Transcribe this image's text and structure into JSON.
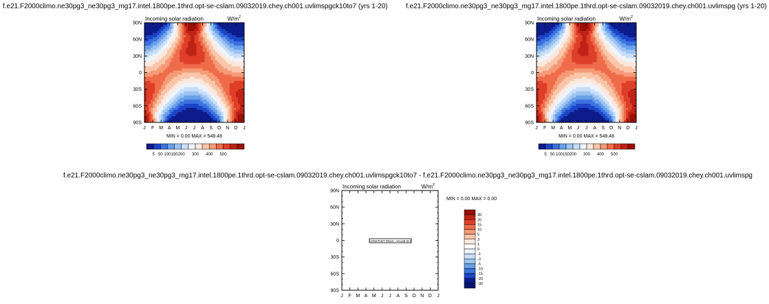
{
  "titles": {
    "top_left": "f.e21.F2000climo.ne30pg3_ne30pg3_mg17.intel.1800pe.1thrd.opt-se-cslam.09032019.chey.ch001.uvlimspgck10to7 (yrs 1-20)",
    "top_right": "f.e21.F2000climo.ne30pg3_ne30pg3_mg17.intel.1800pe.1thrd.opt-se-cslam.09032019.chey.ch001.uvlimspg (yrs 1-20)",
    "bottom": "f.e21.F2000climo.ne30pg3_ne30pg3_mg17.intel.1800pe.1thrd.opt-se-cslam.09032019.chey.ch001.uvlimspgck10to7 - f.e21.F2000climo.ne30pg3_ne30pg3_mg17.intel.1800pe.1thrd.opt-se-cslam.09032019.chey.ch001.uvlimspg"
  },
  "chart_data": [
    {
      "type": "heatmap",
      "title": "Incoming solar radiation",
      "units": "W/m",
      "units_sup": "2",
      "x_ticks": [
        "J",
        "F",
        "M",
        "A",
        "M",
        "J",
        "J",
        "A",
        "S",
        "O",
        "N",
        "D",
        "J"
      ],
      "y_ticks": [
        "90N",
        "60N",
        "30N",
        "0",
        "30S",
        "60S",
        "90S"
      ],
      "ylim": [
        -90,
        90
      ],
      "stats": "MIN =   0.00 MAX = 548.48",
      "colorbar_labels": [
        "5",
        "50",
        "100",
        "150",
        "200",
        "300",
        "400",
        "500"
      ],
      "colors": [
        "#0d1c8a",
        "#1c44c8",
        "#3c73df",
        "#6aa0ea",
        "#9cc4f2",
        "#c9dff8",
        "#eef4fc",
        "#fde8dc",
        "#f9c6aa",
        "#f59b77",
        "#ef6c4b",
        "#de3f28",
        "#bf2316",
        "#981007"
      ]
    },
    {
      "type": "heatmap",
      "title": "Incoming solar radiation",
      "units": "W/m",
      "units_sup": "2",
      "x_ticks": [
        "J",
        "F",
        "M",
        "A",
        "M",
        "J",
        "J",
        "A",
        "S",
        "O",
        "N",
        "D",
        "J"
      ],
      "y_ticks": [
        "90N",
        "60N",
        "30N",
        "0",
        "30S",
        "60S",
        "90S"
      ],
      "ylim": [
        -90,
        90
      ],
      "stats": "MIN =   0.00 MAX = 548.48",
      "colorbar_labels": [
        "5",
        "50",
        "100",
        "150",
        "200",
        "300",
        "400",
        "500"
      ],
      "colors": [
        "#0d1c8a",
        "#1c44c8",
        "#3c73df",
        "#6aa0ea",
        "#9cc4f2",
        "#c9dff8",
        "#eef4fc",
        "#fde8dc",
        "#f9c6aa",
        "#f59b77",
        "#ef6c4b",
        "#de3f28",
        "#bf2316",
        "#981007"
      ]
    },
    {
      "type": "heatmap",
      "title": "Incoming solar radiation",
      "units": "W/m",
      "units_sup": "2",
      "x_ticks": [
        "J",
        "F",
        "M",
        "A",
        "M",
        "J",
        "J",
        "A",
        "S",
        "O",
        "N",
        "D",
        "J"
      ],
      "y_ticks": [
        "90N",
        "60N",
        "30N",
        "0",
        "30S",
        "60S",
        "90S"
      ],
      "ylim": [
        -90,
        90
      ],
      "stats": "MIN =   0.00 MAX =   0.00",
      "annotation": "CONSTANT FIELD - VALUE IS 0",
      "colorbar_labels": [
        "30",
        "20",
        "15",
        "10",
        "5",
        "3",
        "1",
        "0",
        "-1",
        "-3",
        "-5",
        "-10",
        "-15",
        "-20",
        "-30"
      ],
      "colors": [
        "#981007",
        "#bf2316",
        "#de3f28",
        "#ef6c4b",
        "#f59b77",
        "#f9c6aa",
        "#fde8dc",
        "#ffffff",
        "#eef4fc",
        "#c9dff8",
        "#9cc4f2",
        "#6aa0ea",
        "#3c73df",
        "#1c44c8",
        "#0d1c8a",
        "#0a1570"
      ]
    }
  ]
}
